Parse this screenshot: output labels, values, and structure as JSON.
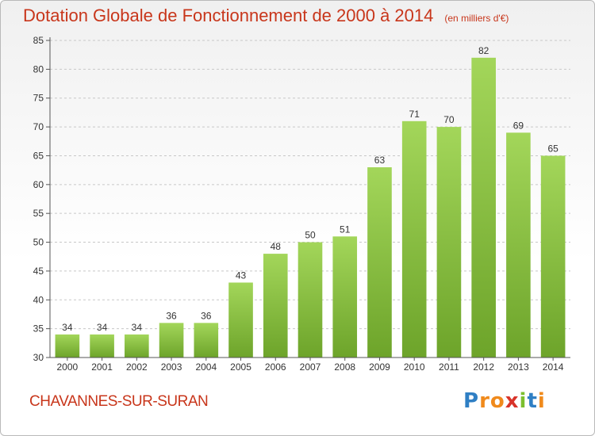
{
  "title": "Dotation Globale de Fonctionnement de 2000 à 2014",
  "subtitle": "(en milliers d'€)",
  "commune": "CHAVANNES-SUR-SURAN",
  "logo": {
    "text": "Proxiti",
    "letters": [
      "P",
      "r",
      "o",
      "x",
      "i",
      "t",
      "i"
    ],
    "colors": [
      "#2f7fc4",
      "#f08a1c",
      "#f08a1c",
      "#d8342a",
      "#7cbf2f",
      "#2f7fc4",
      "#f08a1c"
    ]
  },
  "colors": {
    "title": "#c8361b",
    "bar_light": "#a3d65a",
    "bar_dark": "#6da42a",
    "grid": "#c8c8c8"
  },
  "chart_data": {
    "type": "bar",
    "categories": [
      "2000",
      "2001",
      "2002",
      "2003",
      "2004",
      "2005",
      "2006",
      "2007",
      "2008",
      "2009",
      "2010",
      "2011",
      "2012",
      "2013",
      "2014"
    ],
    "values": [
      34,
      34,
      34,
      36,
      36,
      43,
      48,
      50,
      51,
      63,
      71,
      70,
      82,
      69,
      65
    ],
    "ylim": [
      30,
      85
    ],
    "yticks": [
      30,
      35,
      40,
      45,
      50,
      55,
      60,
      65,
      70,
      75,
      80,
      85
    ],
    "grid": true,
    "data_labels": true
  }
}
